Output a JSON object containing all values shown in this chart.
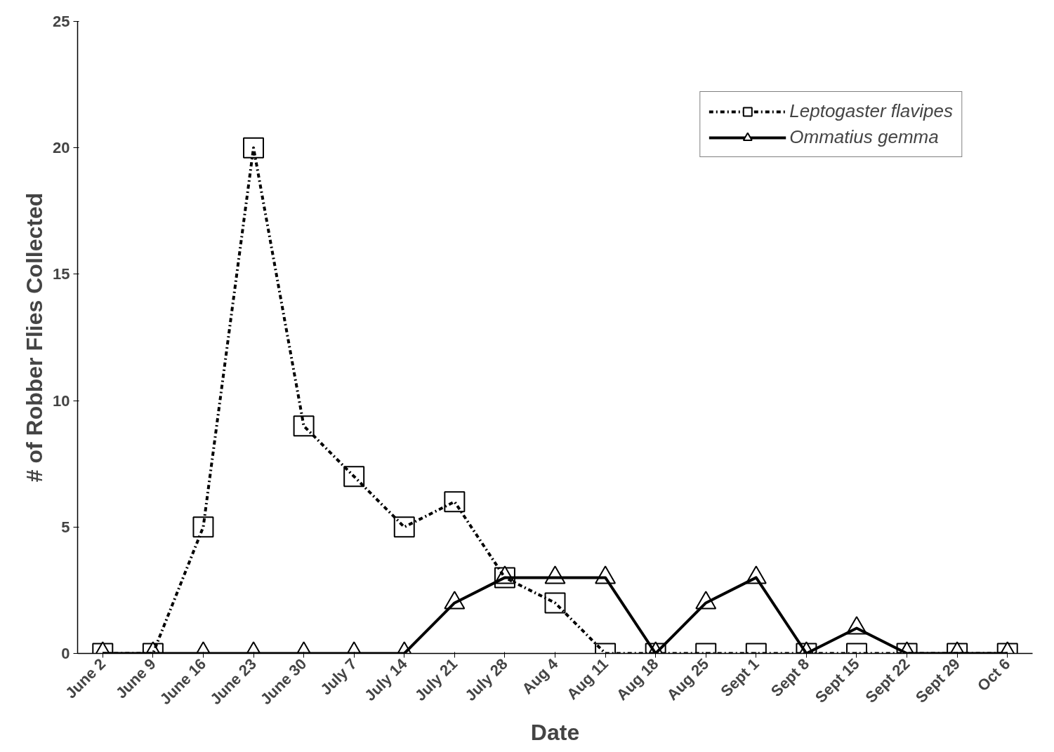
{
  "chart_data": {
    "type": "line",
    "xlabel": "Date",
    "ylabel": "# of Robber Flies Collected",
    "categories": [
      "June 2",
      "June 9",
      "June 16",
      "June 23",
      "June 30",
      "July 7",
      "July 14",
      "July 21",
      "July 28",
      "Aug 4",
      "Aug 11",
      "Aug 18",
      "Aug 25",
      "Sept 1",
      "Sept 8",
      "Sept 15",
      "Sept 22",
      "Sept 29",
      "Oct 6"
    ],
    "series": [
      {
        "name": "Leptogaster flavipes",
        "color": "#000000",
        "marker": "square",
        "line_style": "dashed",
        "values": [
          0,
          0,
          5,
          20,
          9,
          7,
          5,
          6,
          3,
          2,
          0,
          0,
          0,
          0,
          0,
          0,
          0,
          0,
          0
        ]
      },
      {
        "name": "Ommatius gemma",
        "color": "#000000",
        "marker": "triangle",
        "line_style": "solid",
        "values": [
          0,
          0,
          0,
          0,
          0,
          0,
          0,
          2,
          3,
          3,
          3,
          0,
          2,
          3,
          0,
          1,
          0,
          0,
          0
        ]
      }
    ],
    "ylim": [
      0,
      25
    ],
    "yticks": [
      0,
      5,
      10,
      15,
      20,
      25
    ],
    "grid": false,
    "legend": "top right"
  }
}
